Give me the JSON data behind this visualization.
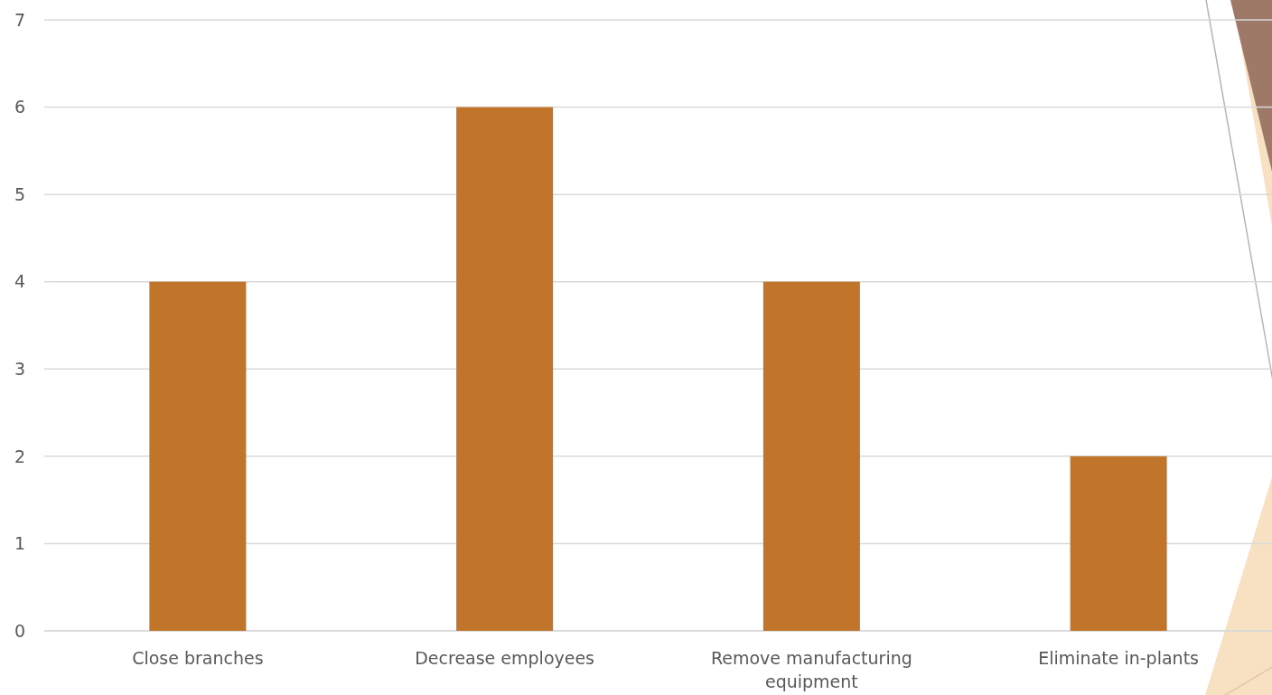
{
  "chart_data": {
    "type": "bar",
    "categories": [
      "Close branches",
      "Decrease employees",
      "Remove manufacturing equipment",
      "Eliminate in-plants"
    ],
    "values": [
      4,
      6,
      4,
      2
    ],
    "color": "#c0752a",
    "ylim": [
      0,
      7
    ],
    "yticks": [
      0,
      1,
      2,
      3,
      4,
      5,
      6,
      7
    ],
    "grid": "y"
  }
}
